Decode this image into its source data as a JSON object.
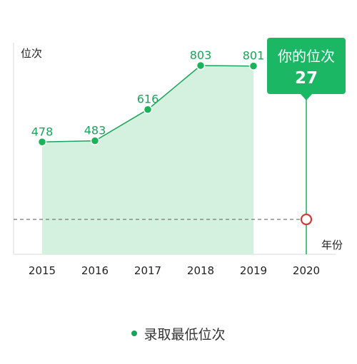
{
  "chart_data": {
    "type": "area",
    "ylabel": "位次",
    "xlabel": "年份",
    "categories": [
      "2015",
      "2016",
      "2017",
      "2018",
      "2019",
      "2020"
    ],
    "series": [
      {
        "name": "录取最低位次",
        "x": [
          "2015",
          "2016",
          "2017",
          "2018",
          "2019"
        ],
        "values": [
          478,
          483,
          616,
          803,
          801
        ]
      }
    ],
    "user_rank": {
      "year": "2020",
      "label": "你的位次",
      "value": 27
    },
    "ylim": [
      0,
      900
    ],
    "grid": false,
    "legend": "bottom-center"
  },
  "colors": {
    "series": "#1aa35a",
    "fill": "#d3f1de",
    "marker": "#19b35c",
    "highlight": "#1cb764",
    "user_marker": "#d03a3a",
    "reference_line": "#777777",
    "axis": "#e6e6e6"
  }
}
